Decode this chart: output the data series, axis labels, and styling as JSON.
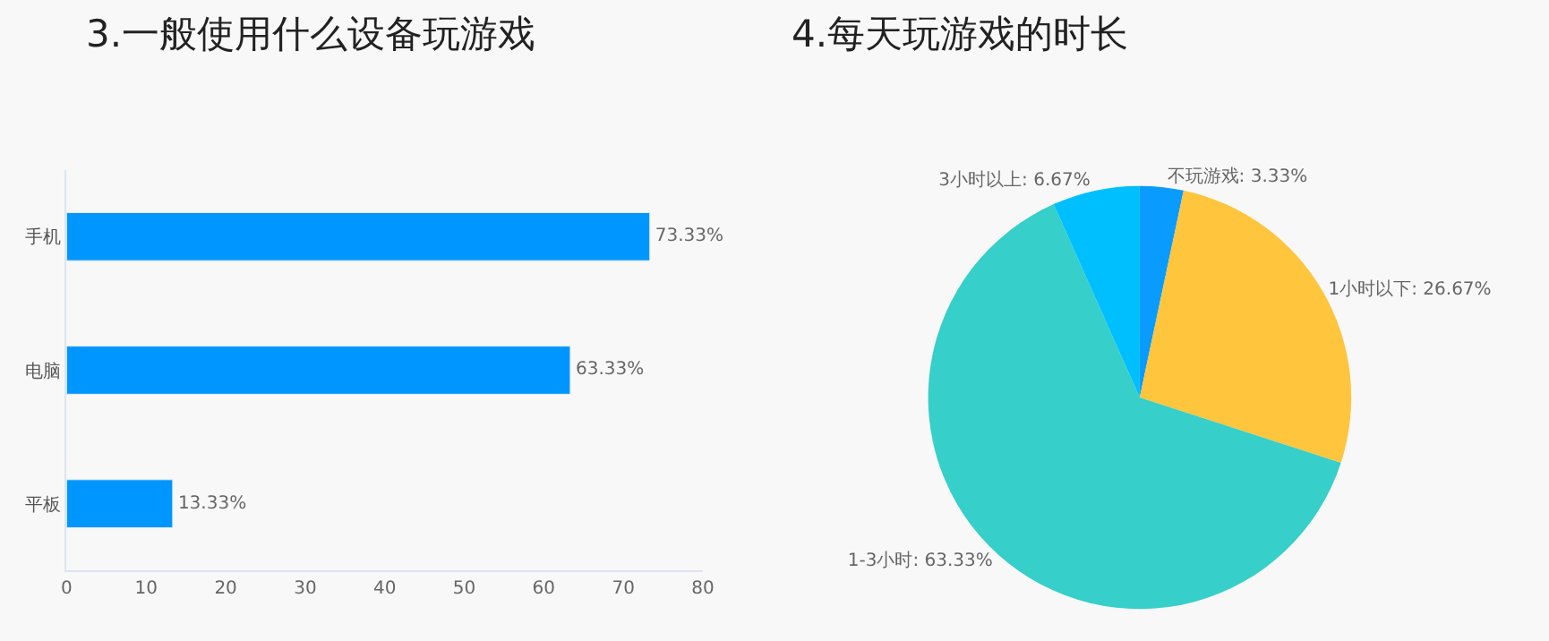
{
  "chart_data": [
    {
      "type": "bar",
      "title": "3.一般使用什么设备玩游戏",
      "orientation": "horizontal",
      "categories": [
        "手机",
        "电脑",
        "平板"
      ],
      "values": [
        73.33,
        63.33,
        13.33
      ],
      "value_labels": [
        "73.33%",
        "63.33%",
        "13.33%"
      ],
      "color": "#0096ff",
      "xlim": [
        0,
        80
      ],
      "xticks": [
        0,
        10,
        20,
        30,
        40,
        50,
        60,
        70,
        80
      ],
      "grid": false,
      "legend": false
    },
    {
      "type": "pie",
      "title": "4.每天玩游戏的时长",
      "categories": [
        "不玩游戏",
        "1小时以下",
        "1-3小时",
        "3小时以上"
      ],
      "values": [
        3.33,
        26.67,
        63.33,
        6.67
      ],
      "value_labels": [
        "3.33%",
        "26.67%",
        "63.33%",
        "6.67%"
      ],
      "colors": [
        "#0a9bff",
        "#ffc53d",
        "#36cfc9",
        "#00bfff"
      ],
      "legend": false
    }
  ]
}
